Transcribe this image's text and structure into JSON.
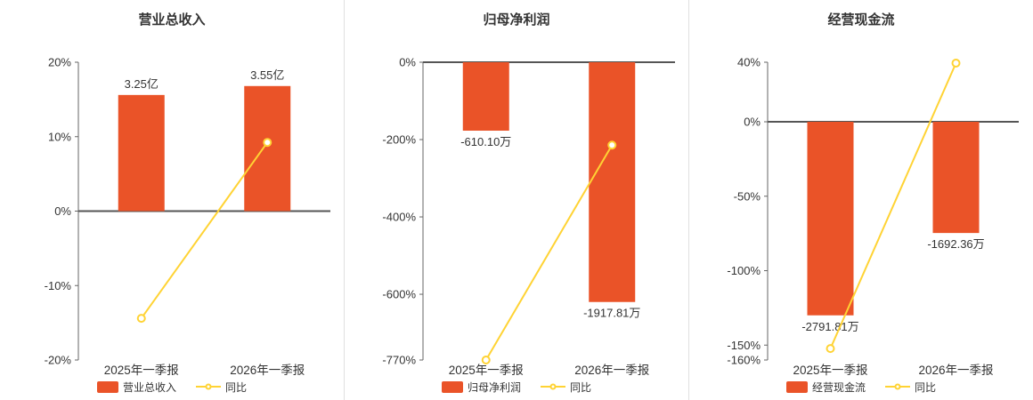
{
  "colors": {
    "bar": "#ea5328",
    "line": "#ffd334",
    "axis_line": "#666666",
    "zero_line": "#555555",
    "text": "#333333",
    "divider": "#e0e0e0",
    "marker_fill": "#ffffff",
    "background": "#ffffff"
  },
  "chart_data": [
    {
      "type": "bar",
      "title": "营业总收入",
      "categories": [
        "2025年一季报",
        "2026年一季报"
      ],
      "y_axis": {
        "unit": "%",
        "max": 20,
        "min": -20,
        "ticks": [
          {
            "label": "20%",
            "value": 20
          },
          {
            "label": "10%",
            "value": 10
          },
          {
            "label": "0%",
            "value": 0
          },
          {
            "label": "-10%",
            "value": -10
          },
          {
            "label": "-20%",
            "value": -20
          }
        ]
      },
      "bar_series": {
        "name": "营业总收入",
        "values": [
          3.25,
          3.55
        ],
        "unit": "亿",
        "labels": [
          "3.25亿",
          "3.55亿"
        ],
        "plot_values_pct": [
          15.6,
          16.8
        ]
      },
      "line_series": {
        "name": "同比",
        "values_pct": [
          -14.4,
          9.23
        ]
      },
      "legend_position": "bottom",
      "grid": false
    },
    {
      "type": "bar",
      "title": "归母净利润",
      "categories": [
        "2025年一季报",
        "2026年一季报"
      ],
      "y_axis": {
        "unit": "%",
        "max": 0,
        "min": -770,
        "ticks": [
          {
            "label": "0%",
            "value": 0
          },
          {
            "label": "-200%",
            "value": -200
          },
          {
            "label": "-400%",
            "value": -400
          },
          {
            "label": "-600%",
            "value": -600
          },
          {
            "label": "-770%",
            "value": -770
          }
        ]
      },
      "bar_series": {
        "name": "归母净利润",
        "values": [
          -610.1,
          -1917.81
        ],
        "unit": "万",
        "labels": [
          "-610.10万",
          "-1917.81万"
        ],
        "plot_values_pct": [
          -177,
          -620
        ]
      },
      "line_series": {
        "name": "同比",
        "values_pct": [
          -770,
          -214.3
        ]
      },
      "legend_position": "bottom",
      "grid": false
    },
    {
      "type": "bar",
      "title": "经营现金流",
      "categories": [
        "2025年一季报",
        "2026年一季报"
      ],
      "y_axis": {
        "unit": "%",
        "max": 40,
        "min": -160,
        "ticks": [
          {
            "label": "40%",
            "value": 40
          },
          {
            "label": "0%",
            "value": 0
          },
          {
            "label": "-50%",
            "value": -50
          },
          {
            "label": "-100%",
            "value": -100
          },
          {
            "label": "-150%",
            "value": -150
          },
          {
            "label": "-160%",
            "value": -160
          }
        ]
      },
      "bar_series": {
        "name": "经营现金流",
        "values": [
          -2791.81,
          -1692.36
        ],
        "unit": "万",
        "labels": [
          "-2791.81万",
          "-1692.36万"
        ],
        "plot_values_pct": [
          -130,
          -74.7
        ]
      },
      "line_series": {
        "name": "同比",
        "values_pct": [
          -152.3,
          39.4
        ]
      },
      "legend_position": "bottom",
      "grid": false
    }
  ]
}
